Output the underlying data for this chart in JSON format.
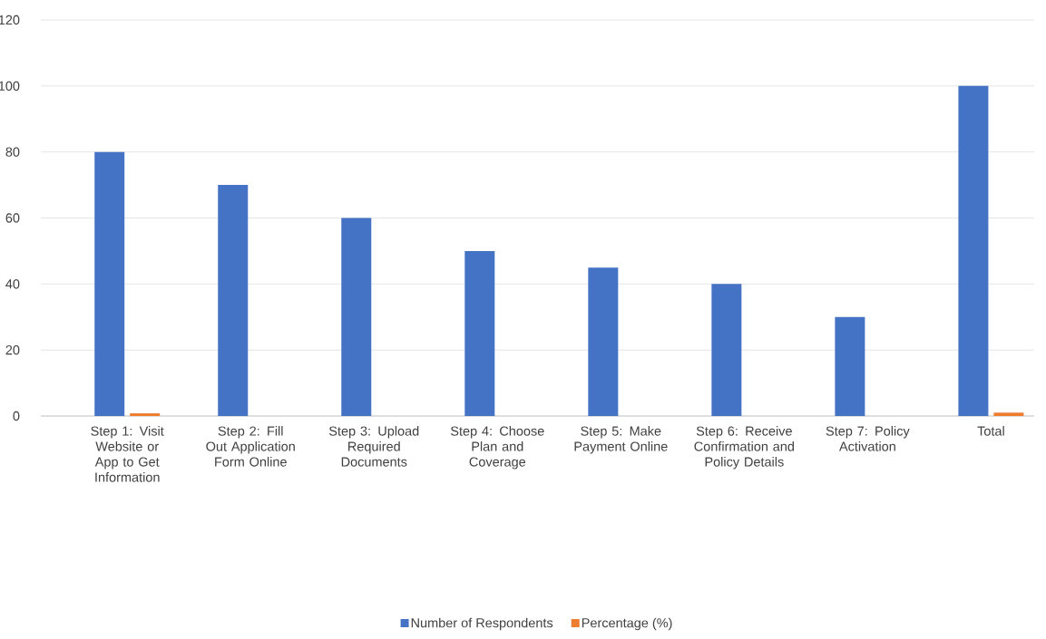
{
  "chart_data": {
    "type": "bar",
    "categories": [
      "Step 1: Visit Website or App to Get Information",
      "Step 2: Fill Out Application Form Online",
      "Step 3: Upload Required Documents",
      "Step 4: Choose Plan and Coverage",
      "Step 5: Make Payment Online",
      "Step 6: Receive Confirmation and Policy Details",
      "Step 7: Policy Activation",
      "Total"
    ],
    "series": [
      {
        "name": "Number of Respondents",
        "color": "#4472c4",
        "values": [
          80,
          70,
          60,
          50,
          45,
          40,
          30,
          100
        ]
      },
      {
        "name": "Percentage (%)",
        "color": "#ed7d31",
        "values": [
          0.8,
          null,
          null,
          null,
          null,
          null,
          null,
          1
        ]
      }
    ],
    "ylim": [
      0,
      120
    ],
    "yticks": [
      0,
      20,
      40,
      60,
      80,
      100,
      120
    ],
    "grid": "y",
    "legend": "bottom"
  }
}
